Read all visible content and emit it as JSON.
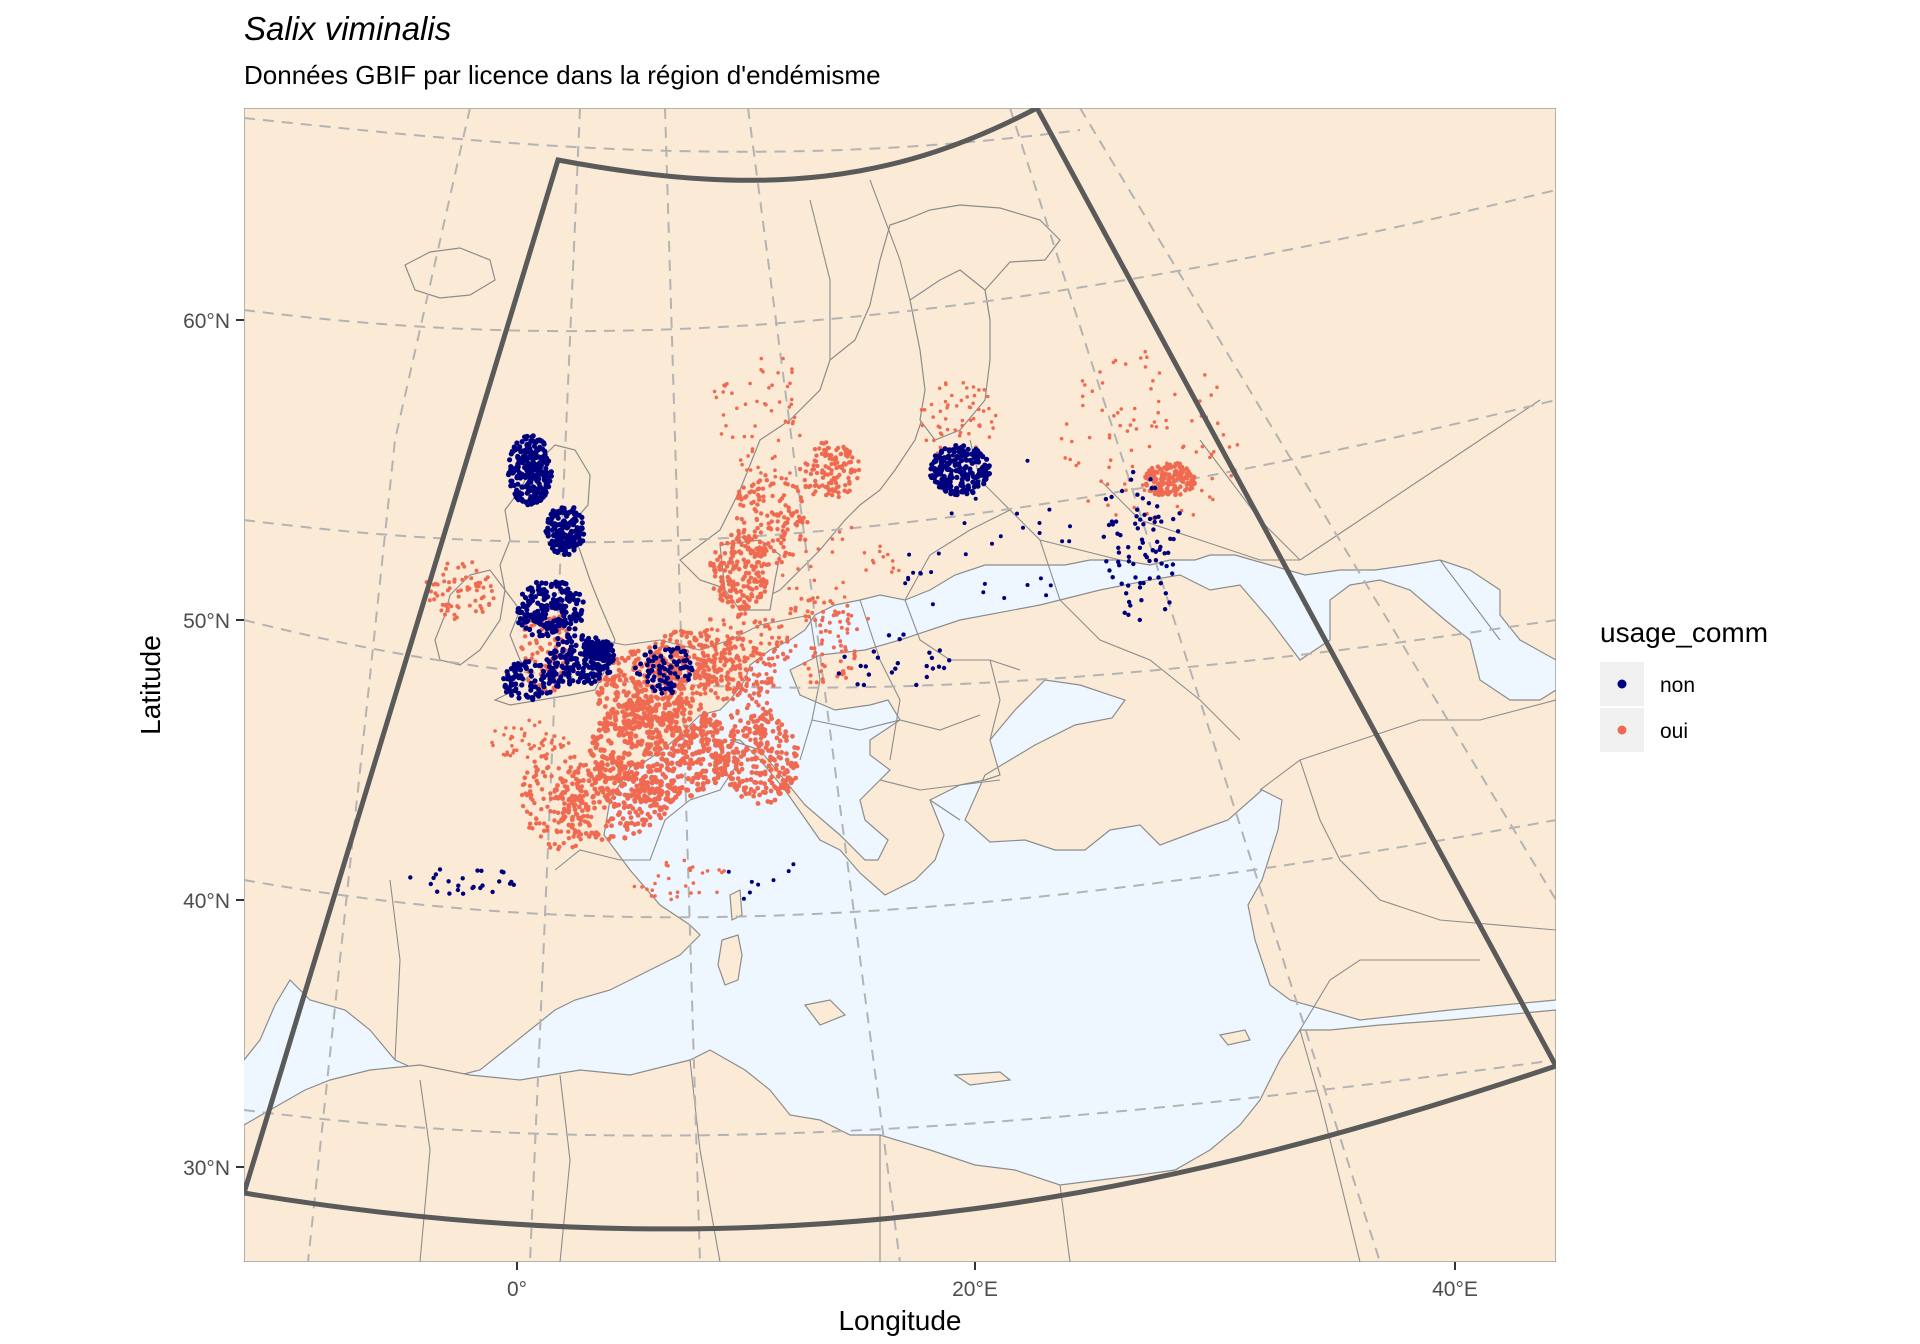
{
  "title": "Salix viminalis",
  "subtitle": "Données GBIF par licence dans la région d'endémisme",
  "axes": {
    "x_label": "Longitude",
    "y_label": "Latitude",
    "x_ticks": [
      {
        "label": "0°",
        "lon": 0
      },
      {
        "label": "20°E",
        "lon": 20
      },
      {
        "label": "40°E",
        "lon": 40
      }
    ],
    "y_ticks": [
      {
        "label": "60°N",
        "lat": 60
      },
      {
        "label": "50°N",
        "lat": 50
      },
      {
        "label": "40°N",
        "lat": 40
      },
      {
        "label": "30°N",
        "lat": 30
      }
    ]
  },
  "legend": {
    "title": "usage_comm",
    "entries": [
      {
        "label": "non",
        "color": "#00007f"
      },
      {
        "label": "oui",
        "color": "#ef6a50"
      }
    ]
  },
  "colors": {
    "sea": "#eef7ff",
    "land": "#fbebd6",
    "border": "#8c8c8c",
    "graticule": "#b3b3b3",
    "region_outline": "#5a5a5a",
    "legend_key_bg": "#f0f0f0"
  }
}
